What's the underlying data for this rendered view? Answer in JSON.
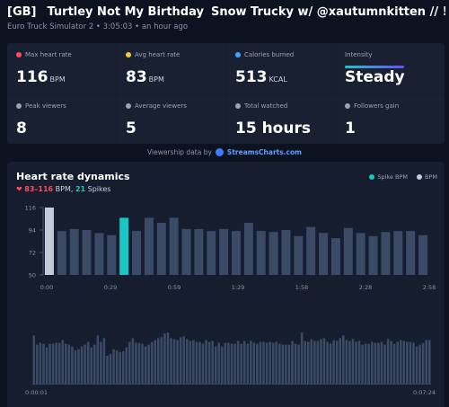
{
  "header": {
    "region_tag": "[GB]",
    "title": "Turtley Not My Birthday",
    "title_part2": "Snow Trucky w/ @xautumnkitten // !fa...",
    "subtitle": "Euro Truck Simulator 2 • 3:05:03 • an hour ago"
  },
  "stats": [
    {
      "label": "Max heart rate",
      "value": "116",
      "unit": "BPM",
      "icon": "heart-icon",
      "icon_color": "#ff4b5c"
    },
    {
      "label": "Avg heart rate",
      "value": "83",
      "unit": "BPM",
      "icon": "heart-icon",
      "icon_color": "#f5c542"
    },
    {
      "label": "Calories burned",
      "value": "513",
      "unit": "KCAL",
      "icon": "drop-icon",
      "icon_color": "#3da5ff"
    },
    {
      "label": "Intensity",
      "value": "Steady",
      "unit": "",
      "icon": "",
      "icon_color": ""
    },
    {
      "label": "Peak viewers",
      "value": "8",
      "unit": "",
      "icon": "trend-icon",
      "icon_color": "#9aa3b6"
    },
    {
      "label": "Average viewers",
      "value": "5",
      "unit": "",
      "icon": "eye-icon",
      "icon_color": "#9aa3b6"
    },
    {
      "label": "Total watched",
      "value": "15 hours",
      "unit": "",
      "icon": "clock-icon",
      "icon_color": "#9aa3b6"
    },
    {
      "label": "Followers gain",
      "value": "1",
      "unit": "",
      "icon": "user-plus-icon",
      "icon_color": "#9aa3b6"
    }
  ],
  "intensity_level": 1.0,
  "credit": {
    "text": "Viewership data by",
    "brand": "StreamsCharts.com"
  },
  "chart_panel": {
    "title": "Heart rate dynamics",
    "range_text": "83–116",
    "range_unit": "BPM,",
    "spikes_count": "21",
    "spikes_label": "Spikes",
    "legend": [
      {
        "name": "Spike BPM",
        "color": "#19c6c6"
      },
      {
        "name": "BPM",
        "color": "#c3cbd8"
      }
    ]
  },
  "colors": {
    "bar": "#3a4b68",
    "bar_max": "#c3cbd8",
    "bar_spike": "#19c6c6"
  },
  "chart_data": [
    {
      "type": "bar",
      "title": "Heart rate dynamics",
      "ylim": [
        50,
        116
      ],
      "yticks": [
        "116",
        "94",
        "72",
        "50"
      ],
      "ytick_values": [
        116,
        94,
        72,
        50
      ],
      "xticks": [
        "0:00",
        "0:29",
        "0:59",
        "1:29",
        "1:58",
        "2:28",
        "2:58"
      ],
      "highlight_max_index": 0,
      "highlight_spike_index": 6,
      "values": [
        116,
        93,
        95,
        94,
        91,
        89,
        106,
        93,
        106,
        101,
        106,
        95,
        95,
        93,
        95,
        93,
        101,
        93,
        92,
        94,
        88,
        97,
        91,
        86,
        96,
        91,
        88,
        92,
        93,
        93,
        89
      ]
    },
    {
      "type": "bar",
      "xticks": [
        "0:00:01",
        "0:07:24"
      ],
      "values": [
        82,
        72,
        74,
        73,
        69,
        73,
        73,
        74,
        74,
        77,
        73,
        72,
        70,
        66,
        67,
        70,
        72,
        75,
        69,
        72,
        82,
        75,
        79,
        60,
        62,
        67,
        66,
        64,
        65,
        69,
        75,
        79,
        74,
        74,
        73,
        70,
        72,
        75,
        77,
        79,
        80,
        84,
        85,
        79,
        78,
        77,
        80,
        81,
        78,
        76,
        77,
        75,
        75,
        73,
        77,
        75,
        76,
        70,
        74,
        70,
        74,
        74,
        73,
        73,
        76,
        73,
        76,
        73,
        76,
        74,
        73,
        75,
        75,
        74,
        75,
        74,
        75,
        73,
        72,
        72,
        72,
        76,
        73,
        72,
        85,
        76,
        75,
        78,
        76,
        76,
        78,
        79,
        75,
        73,
        77,
        76,
        79,
        82,
        77,
        76,
        78,
        75,
        76,
        72,
        73,
        73,
        75,
        74,
        74,
        75,
        72,
        78,
        76,
        73,
        75,
        77,
        76,
        75,
        75,
        74,
        70,
        72,
        74,
        77,
        77
      ]
    }
  ]
}
